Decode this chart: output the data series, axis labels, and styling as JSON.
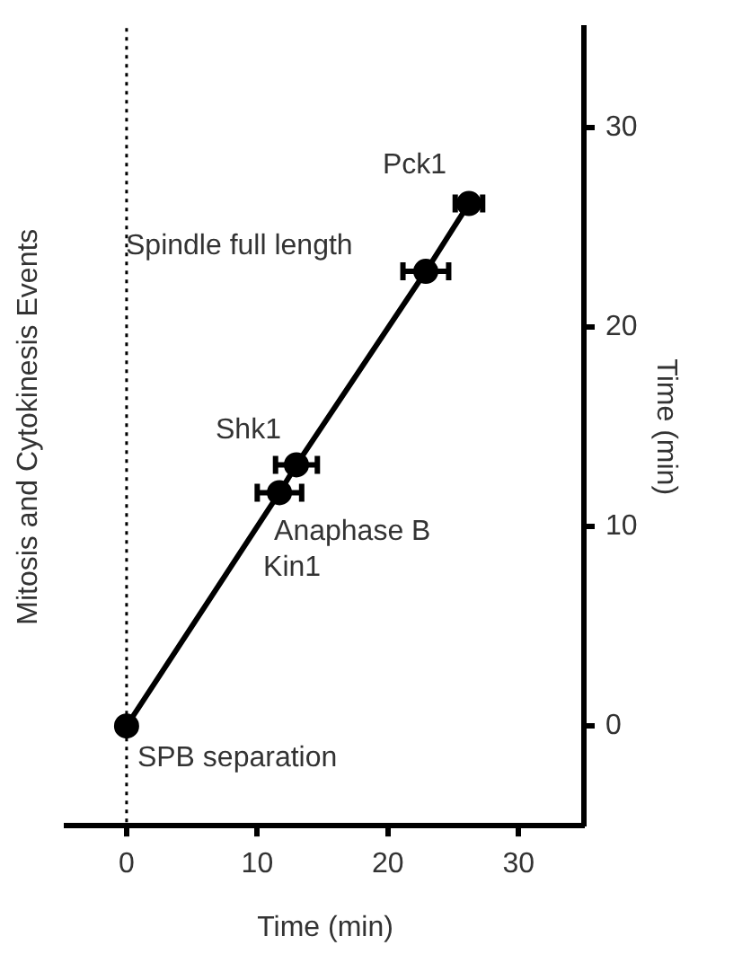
{
  "chart_data": {
    "type": "line",
    "xlabel": "Time (min)",
    "ylabel": "Mitosis and Cytokinesis Events",
    "y2label": "Time (min)",
    "x": [
      0,
      11.7,
      13.0,
      22.9,
      26.2
    ],
    "series": [
      {
        "color": "#000000",
        "values": [
          0,
          11.7,
          13.1,
          22.8,
          26.2
        ],
        "xerrors": [
          null,
          1.7,
          1.6,
          1.75,
          1.05
        ]
      }
    ],
    "xlim": [
      -4.6,
      35
    ],
    "xticks": [
      0,
      10,
      20,
      30
    ],
    "ylim": [
      -5,
      35
    ],
    "yticks": [
      0,
      10,
      20,
      30
    ],
    "ref_lines": [
      {
        "axis": "x",
        "value": 0,
        "color": "#000000",
        "line_style": "dotted"
      }
    ],
    "annotations": [
      {
        "text": "SPB separation",
        "x": 0,
        "y": 0
      },
      {
        "text": "Anaphase B",
        "x": 11.7,
        "y": 11.7
      },
      {
        "text": "Kin1",
        "x": 11.7,
        "y": 11.7
      },
      {
        "text": "Shk1",
        "x": 13.0,
        "y": 13.1
      },
      {
        "text": "Spindle full length",
        "x": 22.9,
        "y": 22.8
      },
      {
        "text": "Pck1",
        "x": 26.2,
        "y": 26.2
      }
    ],
    "marker": "circle",
    "line_style": "solid",
    "grid": false,
    "legend": false
  }
}
